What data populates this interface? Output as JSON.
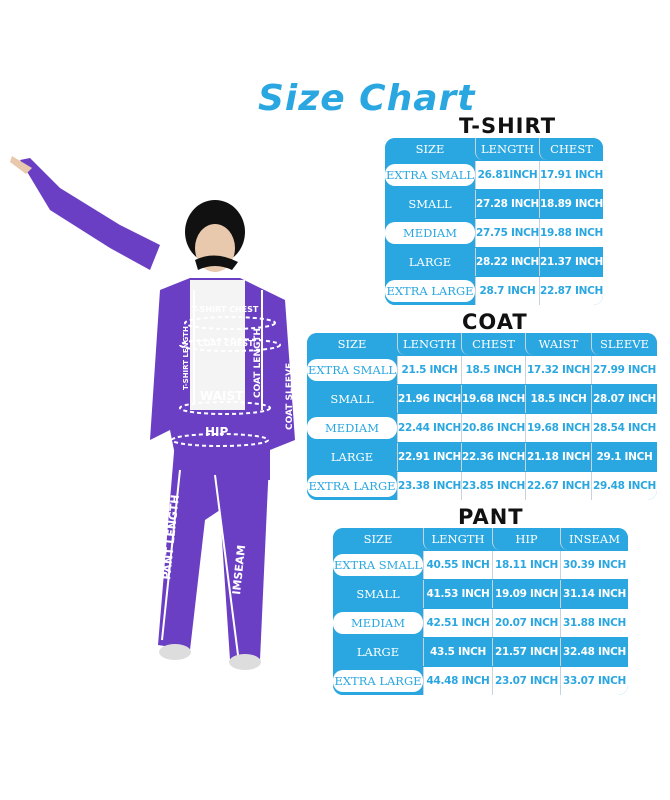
{
  "title": "Size Chart",
  "colors": {
    "accent": "#2aa7e0",
    "suit": "#6a3fc4",
    "text_dark": "#111111"
  },
  "figure_labels": {
    "tshirt_chest": "T-SHIRT CHEST",
    "coat_chest": "COAT CHEST",
    "tshirt_length": "T-SHIRT LENGTH",
    "coat_length": "COAT LENGTH",
    "waist": "WAIST",
    "coat_sleeve": "COAT SLEEVE",
    "hip": "HIP",
    "pant_length": "PANT LENGTH",
    "inseam": "IMSEAM"
  },
  "tables": [
    {
      "name": "T-SHIRT",
      "columns": [
        "SIZE",
        "LENGTH",
        "CHEST"
      ],
      "rows": [
        [
          "EXTRA SMALL",
          "26.81INCH",
          "17.91 INCH"
        ],
        [
          "SMALL",
          "27.28 INCH",
          "18.89 INCH"
        ],
        [
          "MEDIAM",
          "27.75 INCH",
          "19.88 INCH"
        ],
        [
          "LARGE",
          "28.22 INCH",
          "21.37 INCH"
        ],
        [
          "EXTRA LARGE",
          "28.7 INCH",
          "22.87 INCH"
        ]
      ]
    },
    {
      "name": "COAT",
      "columns": [
        "SIZE",
        "LENGTH",
        "CHEST",
        "WAIST",
        "SLEEVE"
      ],
      "rows": [
        [
          "EXTRA SMALL",
          "21.5 INCH",
          "18.5 INCH",
          "17.32 INCH",
          "27.99 INCH"
        ],
        [
          "SMALL",
          "21.96 INCH",
          "19.68 INCH",
          "18.5 INCH",
          "28.07 INCH"
        ],
        [
          "MEDIAM",
          "22.44 INCH",
          "20.86 INCH",
          "19.68 INCH",
          "28.54 INCH"
        ],
        [
          "LARGE",
          "22.91 INCH",
          "22.36 INCH",
          "21.18 INCH",
          "29.1 INCH"
        ],
        [
          "EXTRA LARGE",
          "23.38 INCH",
          "23.85 INCH",
          "22.67 INCH",
          "29.48 INCH"
        ]
      ]
    },
    {
      "name": "PANT",
      "columns": [
        "SIZE",
        "LENGTH",
        "HIP",
        "INSEAM"
      ],
      "rows": [
        [
          "EXTRA SMALL",
          "40.55 INCH",
          "18.11 INCH",
          "30.39 INCH"
        ],
        [
          "SMALL",
          "41.53 INCH",
          "19.09 INCH",
          "31.14 INCH"
        ],
        [
          "MEDIAM",
          "42.51 INCH",
          "20.07 INCH",
          "31.88 INCH"
        ],
        [
          "LARGE",
          "43.5 INCH",
          "21.57 INCH",
          "32.48 INCH"
        ],
        [
          "EXTRA LARGE",
          "44.48 INCH",
          "23.07 INCH",
          "33.07 INCH"
        ]
      ]
    }
  ]
}
